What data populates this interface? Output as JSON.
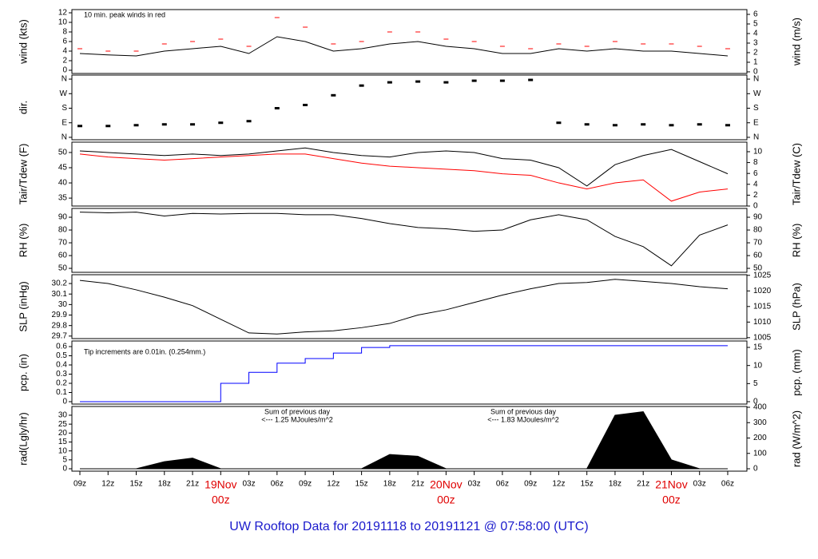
{
  "title": "UW Rooftop Data for 20191118  to  20191121 @ 07:58:00  (UTC)",
  "x_axis": {
    "categories": [
      "09z",
      "12z",
      "15z",
      "18z",
      "21z",
      "00z",
      "03z",
      "06z",
      "09z",
      "12z",
      "15z",
      "18z",
      "21z",
      "00z",
      "03z",
      "06z",
      "09z",
      "12z",
      "15z",
      "18z",
      "21z",
      "00z",
      "03z",
      "06z"
    ],
    "day_labels": [
      "19Nov",
      "20Nov",
      "21Nov"
    ]
  },
  "chart_data": [
    {
      "type": "line",
      "ylabel": "wind (kts)",
      "y2label": "wind (m/s)",
      "ylim": [
        -0.67,
        12.67
      ],
      "yticks": [
        0,
        2,
        4,
        6,
        8,
        10,
        12
      ],
      "y2lim": [
        -0.17,
        6.5
      ],
      "y2ticks": [
        0,
        1,
        2,
        3,
        4,
        5,
        6
      ],
      "annotations": [
        {
          "lines": [
            "10 min. peak winds in red"
          ],
          "color": "#e00000"
        }
      ],
      "series": [
        {
          "name": "wind",
          "color": "#000000",
          "values": [
            3.5,
            3.2,
            3,
            4,
            4.5,
            5,
            3.5,
            7,
            6,
            4,
            4.5,
            5.5,
            6,
            5,
            4.5,
            3.5,
            3.5,
            4.5,
            4,
            4.5,
            4,
            4,
            3.5,
            3
          ]
        },
        {
          "name": "peak",
          "color": "#ff0000",
          "marker": "dash",
          "values": [
            4.5,
            4,
            4,
            5.5,
            6,
            6.5,
            5,
            11,
            9,
            5.5,
            6,
            8,
            8,
            6.5,
            6,
            5,
            4.5,
            5.5,
            5,
            6,
            5.5,
            5.5,
            5,
            4.5
          ]
        }
      ]
    },
    {
      "type": "scatter",
      "ylabel": "dir.",
      "ylim": [
        -15,
        385
      ],
      "yticks": [
        {
          "value": 0,
          "label": "N"
        },
        {
          "value": 90,
          "label": "E"
        },
        {
          "value": 180,
          "label": "S"
        },
        {
          "value": 270,
          "label": "W"
        },
        {
          "value": 360,
          "label": "N"
        }
      ],
      "series": [
        {
          "name": "dir",
          "color": "#000000",
          "values": [
            70,
            70,
            75,
            80,
            80,
            90,
            100,
            180,
            200,
            260,
            320,
            340,
            345,
            340,
            350,
            350,
            355,
            90,
            80,
            75,
            80,
            75,
            80,
            75
          ]
        }
      ]
    },
    {
      "type": "line",
      "ylabel": "Tair/Tdew (F)",
      "y2label": "Tair/Tdew (C)",
      "ylim": [
        32.4,
        53.4
      ],
      "yticks": [
        35,
        40,
        45,
        50
      ],
      "y2lim": [
        0,
        11.76
      ],
      "y2ticks": [
        0,
        2,
        4,
        6,
        8,
        10
      ],
      "series": [
        {
          "name": "Tair",
          "color": "#000000",
          "values": [
            50.5,
            50,
            49.5,
            49,
            49.5,
            49,
            49.5,
            50.5,
            51.5,
            50,
            49,
            48.5,
            50,
            50.5,
            50,
            48,
            47.5,
            45,
            39,
            46,
            49,
            51,
            47,
            43
          ]
        },
        {
          "name": "Tdew",
          "color": "#ff0000",
          "values": [
            49.5,
            48.5,
            48,
            47.5,
            48,
            48.5,
            49,
            49.5,
            49.5,
            48,
            46.5,
            45.5,
            45,
            44.5,
            44,
            43,
            42.5,
            40,
            38,
            40,
            41,
            34,
            37,
            38
          ]
        }
      ]
    },
    {
      "type": "line",
      "ylabel": "RH (%)",
      "y2label": "RH (%)",
      "ylim": [
        46.9,
        96.9
      ],
      "yticks": [
        50,
        60,
        70,
        80,
        90
      ],
      "series": [
        {
          "name": "RH",
          "color": "#000000",
          "values": [
            94,
            93.5,
            94,
            91,
            93,
            92.5,
            93,
            93,
            92,
            92,
            89,
            85,
            82,
            81,
            79,
            80,
            88,
            92,
            88,
            75,
            67,
            52,
            76,
            84
          ]
        }
      ]
    },
    {
      "type": "line",
      "ylabel": "SLP (inHg)",
      "y2label": "SLP (hPa)",
      "ylim": [
        29.676,
        30.284
      ],
      "yticks": [
        29.7,
        29.8,
        29.9,
        30,
        30.1,
        30.2
      ],
      "y2lim": [
        1004.7,
        1025.2
      ],
      "y2ticks": [
        1005,
        1010,
        1015,
        1020,
        1025
      ],
      "series": [
        {
          "name": "SLP",
          "color": "#000000",
          "values": [
            30.23,
            30.2,
            30.14,
            30.07,
            29.99,
            29.86,
            29.73,
            29.72,
            29.74,
            29.75,
            29.78,
            29.82,
            29.9,
            29.95,
            30.02,
            30.09,
            30.15,
            30.2,
            30.21,
            30.24,
            30.22,
            30.2,
            30.17,
            30.15
          ]
        }
      ]
    },
    {
      "type": "step",
      "ylabel": "pcp. (in)",
      "y2label": "pcp. (mm)",
      "ylim": [
        -0.026,
        0.661
      ],
      "yticks": [
        0,
        0.1,
        0.2,
        0.3,
        0.4,
        0.5,
        0.6
      ],
      "y2lim": [
        -0.66,
        16.77
      ],
      "y2ticks": [
        0,
        5,
        10,
        15
      ],
      "annotations": [
        {
          "lines": [
            "Tip increments are 0.01in. (0.254mm.)"
          ],
          "color": "#1a1acc"
        }
      ],
      "series": [
        {
          "name": "pcp",
          "color": "#0000ff",
          "values": [
            0,
            0,
            0,
            0,
            0,
            0.2,
            0.32,
            0.42,
            0.47,
            0.53,
            0.59,
            0.61,
            0.61,
            0.61,
            0.61,
            0.61,
            0.61,
            0.61,
            0.61,
            0.61,
            0.61,
            0.61,
            0.61,
            0.61
          ]
        }
      ]
    },
    {
      "type": "area",
      "ylabel": "rad(Lgly/hr)",
      "y2label": "rad (W/m^2)",
      "ylim": [
        -1.34,
        34.9
      ],
      "yticks": [
        0,
        5,
        10,
        15,
        20,
        25,
        30
      ],
      "y2lim": [
        -15.6,
        405.2
      ],
      "y2ticks": [
        0,
        100,
        200,
        300,
        400
      ],
      "annotations": [
        {
          "lines": [
            "Sum of previous day",
            "<--- 1.25 MJoules/m^2"
          ],
          "color": "#9933cc"
        },
        {
          "lines": [
            "Sum of previous day",
            "<--- 1.83 MJoules/m^2"
          ],
          "color": "#9933cc"
        }
      ],
      "series": [
        {
          "name": "rad",
          "color": "#000000",
          "values": [
            0,
            0,
            0,
            4,
            6,
            0,
            0,
            0,
            0,
            0,
            0,
            8,
            7,
            0,
            0,
            0,
            0,
            0,
            0,
            30,
            32,
            5,
            0,
            0
          ]
        }
      ]
    }
  ]
}
